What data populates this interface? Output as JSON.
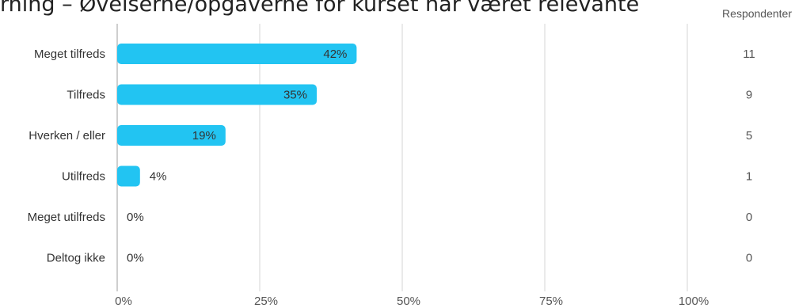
{
  "title": "rning – Øvelserne/opgaverne for kurset har været relevante",
  "respondents_header": "Respondenter",
  "chart_data": {
    "type": "bar",
    "orientation": "horizontal",
    "categories": [
      "Meget tilfreds",
      "Tilfreds",
      "Hverken / eller",
      "Utilfreds",
      "Meget utilfreds",
      "Deltog ikke"
    ],
    "values": [
      42,
      35,
      19,
      4,
      0,
      0
    ],
    "value_labels": [
      "42%",
      "35%",
      "19%",
      "4%",
      "0%",
      "0%"
    ],
    "respondents": [
      "11",
      "9",
      "5",
      "1",
      "0",
      "0"
    ],
    "x_ticks": [
      0,
      25,
      50,
      75,
      100
    ],
    "x_tick_labels": [
      "0%",
      "25%",
      "50%",
      "75%",
      "100%"
    ],
    "xlim": [
      0,
      100
    ],
    "grid": true,
    "colors": {
      "bar": "#22c4f2",
      "grid": "#d4d4d4",
      "axis": "#bdbdbd",
      "label": "#333333",
      "tick": "#555555"
    }
  }
}
